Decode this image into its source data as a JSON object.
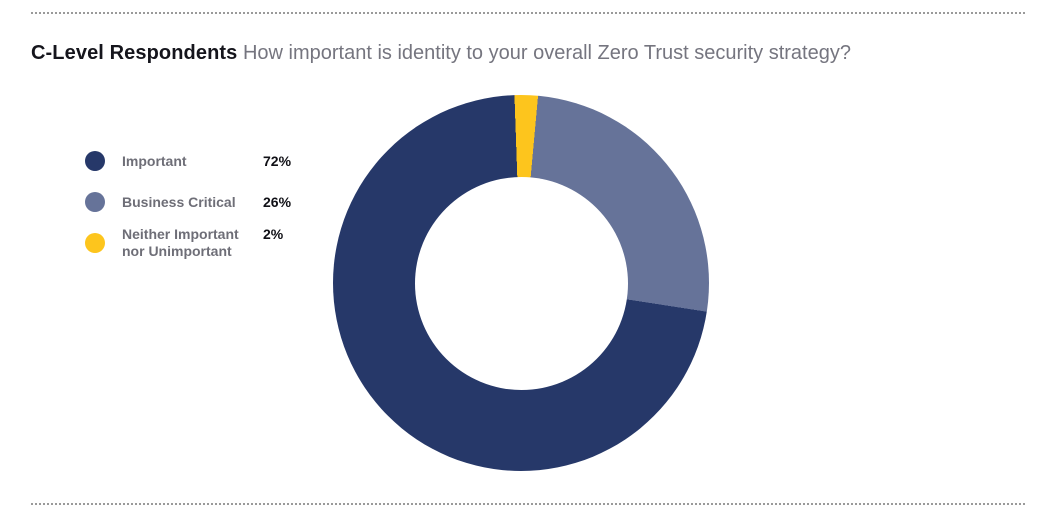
{
  "header": {
    "title": "C-Level Respondents",
    "subtitle": "How important is identity to your overall Zero Trust security strategy?"
  },
  "legend": {
    "items": [
      {
        "label": "Important",
        "value": "72%",
        "color": "#263869"
      },
      {
        "label": "Business Critical",
        "value": "26%",
        "color": "#667399"
      },
      {
        "label": "Neither Important nor Unimportant",
        "value": "2%",
        "color": "#FDC51D"
      }
    ]
  },
  "chart_data": {
    "type": "pie",
    "subtype": "donut",
    "title": "C-Level Respondents: How important is identity to your overall Zero Trust security strategy?",
    "categories": [
      "Important",
      "Business Critical",
      "Neither Important nor Unimportant"
    ],
    "values": [
      72,
      26,
      2
    ],
    "unit": "%",
    "series_colors": [
      "#263869",
      "#667399",
      "#FDC51D"
    ],
    "draw_order": [
      2,
      1,
      0
    ],
    "start_angle_deg": -2,
    "clockwise": true,
    "donut_hole_ratio": 0.566,
    "legend_position": "left",
    "data_labels": "in legend"
  },
  "style": {
    "background": "#FFFFFF",
    "divider_color": "#9A9A9A",
    "title_color": "#15151C",
    "subtitle_color": "#75757F",
    "legend_label_color": "#6E6E77",
    "legend_value_color": "#101016"
  }
}
